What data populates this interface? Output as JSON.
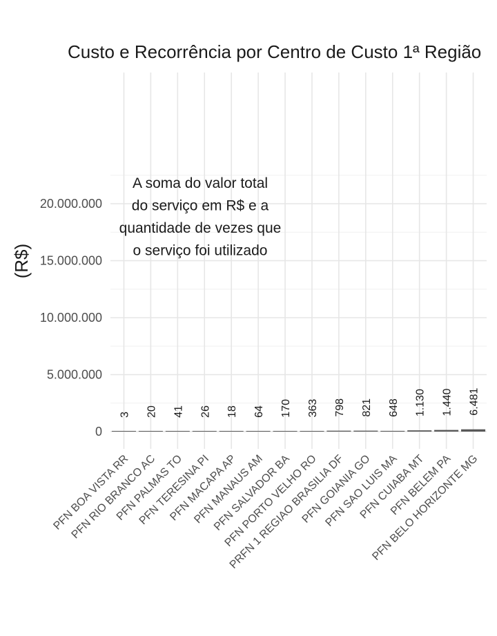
{
  "chart_data": {
    "type": "bar",
    "title": "Custo e Recorrência por Centro de Custo 1ª Região",
    "xlabel": "",
    "ylabel": "(R$)",
    "annotation": [
      "A soma do valor total",
      "do serviço em R$ e a",
      "quantidade de vezes que",
      "o serviço foi utilizado"
    ],
    "ylim": [
      -1000000,
      24600000
    ],
    "yticks": [
      0,
      5000000,
      10000000,
      15000000,
      20000000
    ],
    "ytick_labels": [
      "0",
      "5.000.000",
      "10.000.000",
      "15.000.000",
      "20.000.000"
    ],
    "categories": [
      "PFN BOA VISTA RR",
      "PFN RIO BRANCO AC",
      "PFN PALMAS TO",
      "PFN TERESINA PI",
      "PFN MACAPA AP",
      "PFN MANAUS AM",
      "PFN SALVADOR BA",
      "PFN PORTO VELHO RO",
      "PRFN 1 REGIAO BRASILIA DF",
      "PFN GOIANIA GO",
      "PFN SAO LUIS MA",
      "PFN CUIABA MT",
      "PFN BELEM PA",
      "PFN BELO HORIZONTE MG"
    ],
    "values": [
      300,
      2000,
      4000,
      2600,
      1800,
      6000,
      17000,
      36000,
      80000,
      82000,
      65000,
      110000,
      145000,
      200000
    ],
    "count_labels": [
      "3",
      "20",
      "41",
      "26",
      "18",
      "64",
      "170",
      "363",
      "798",
      "821",
      "648",
      "1.130",
      "1.440",
      "6.481"
    ],
    "bar_color": "#595959",
    "grid": true,
    "legend": "none"
  }
}
